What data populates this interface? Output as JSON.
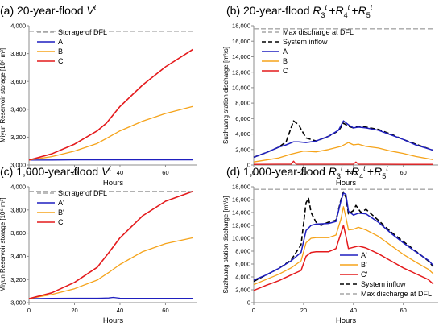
{
  "chart_data": [
    {
      "id": "a",
      "type": "line",
      "title": "(a) 20-year-flood V3t",
      "title_main": "(a) 20-year-flood ",
      "title_sym": "V",
      "title_sub": "3",
      "title_sup": "t",
      "xlabel": "Hours",
      "ylabel": "Miyun Reservoir storage [10⁶ m³]",
      "xlim": [
        0,
        74
      ],
      "ylim": [
        3000,
        4000
      ],
      "xticks": [
        0,
        20,
        40,
        60
      ],
      "yticks": [
        3000,
        3200,
        3400,
        3600,
        3800,
        4000
      ],
      "ytick_labels": [
        "3,000",
        "3,200",
        "3,400",
        "3,600",
        "3,800",
        "4,000"
      ],
      "legend_position": "top-left",
      "legend": [
        {
          "label": "Storage of DFL",
          "color": "#a6a6a6",
          "dash": "dashed"
        },
        {
          "label": "A",
          "color": "#1f1fbf",
          "dash": "solid"
        },
        {
          "label": "B",
          "color": "#f5a31a",
          "dash": "solid"
        },
        {
          "label": "C",
          "color": "#e41a1c",
          "dash": "solid"
        }
      ],
      "series": [
        {
          "name": "Storage of DFL",
          "color": "#a6a6a6",
          "dash": "dashed",
          "width": 1.4,
          "x": [
            0,
            72
          ],
          "y": [
            3960,
            3960
          ]
        },
        {
          "name": "A",
          "color": "#1f1fbf",
          "dash": "solid",
          "width": 1.3,
          "x": [
            0,
            10,
            20,
            30,
            40,
            50,
            60,
            72
          ],
          "y": [
            3035,
            3036,
            3037,
            3037,
            3037,
            3037,
            3037,
            3037
          ]
        },
        {
          "name": "B",
          "color": "#f5a31a",
          "dash": "solid",
          "width": 1.3,
          "x": [
            0,
            10,
            20,
            30,
            34,
            40,
            50,
            60,
            72
          ],
          "y": [
            3035,
            3060,
            3100,
            3155,
            3190,
            3245,
            3315,
            3370,
            3420
          ]
        },
        {
          "name": "C",
          "color": "#e41a1c",
          "dash": "solid",
          "width": 1.6,
          "x": [
            0,
            10,
            20,
            30,
            34,
            40,
            50,
            60,
            72
          ],
          "y": [
            3035,
            3080,
            3150,
            3245,
            3300,
            3420,
            3575,
            3705,
            3830
          ]
        }
      ]
    },
    {
      "id": "b",
      "type": "line",
      "title": "(b) 20-year-flood R3t +R4t +R5t",
      "title_main": "(b) 20-year-flood ",
      "title_terms": [
        {
          "sym": "R",
          "sub": "3",
          "sup": "t"
        },
        {
          "sym": "R",
          "sub": "4",
          "sup": "t"
        },
        {
          "sym": "R",
          "sub": "5",
          "sup": "t"
        }
      ],
      "xlabel": "Hours",
      "ylabel": "Suzhuang station discharge [m³/s]",
      "xlim": [
        0,
        74
      ],
      "ylim": [
        0,
        18000
      ],
      "xticks": [
        0,
        20,
        40,
        60
      ],
      "yticks": [
        0,
        2000,
        4000,
        6000,
        8000,
        10000,
        12000,
        14000,
        16000,
        18000
      ],
      "ytick_labels": [
        "0",
        "2,000",
        "4,000",
        "6,000",
        "8,000",
        "10,000",
        "12,000",
        "14,000",
        "16,000",
        "18,000"
      ],
      "legend_position": "top-left",
      "legend": [
        {
          "label": "Max discharge at DFL",
          "color": "#a6a6a6",
          "dash": "dashed"
        },
        {
          "label": "System inflow",
          "color": "#000000",
          "dash": "dashed"
        },
        {
          "label": "A",
          "color": "#1f1fbf",
          "dash": "solid"
        },
        {
          "label": "B",
          "color": "#f5a31a",
          "dash": "solid"
        },
        {
          "label": "C",
          "color": "#e41a1c",
          "dash": "solid"
        }
      ],
      "series": [
        {
          "name": "Max discharge at DFL",
          "color": "#a6a6a6",
          "dash": "dashed",
          "width": 1.4,
          "x": [
            0,
            72
          ],
          "y": [
            17600,
            17600
          ]
        },
        {
          "name": "System inflow",
          "color": "#000000",
          "dash": "dashed",
          "width": 1.6,
          "x": [
            0,
            5,
            10,
            13,
            16,
            18,
            21,
            25,
            30,
            34,
            36,
            38,
            40,
            42,
            45,
            50,
            55,
            60,
            65,
            72
          ],
          "y": [
            1000,
            1600,
            2300,
            3000,
            5700,
            5200,
            3500,
            3100,
            3700,
            4400,
            5400,
            5000,
            4800,
            5000,
            4900,
            4600,
            4000,
            3300,
            2700,
            1900
          ]
        },
        {
          "name": "A",
          "color": "#1f1fbf",
          "dash": "solid",
          "width": 1.5,
          "x": [
            0,
            5,
            10,
            13,
            16,
            18,
            21,
            25,
            30,
            34,
            36,
            38,
            40,
            42,
            45,
            50,
            55,
            60,
            65,
            72
          ],
          "y": [
            1000,
            1600,
            2300,
            2600,
            3000,
            3000,
            2900,
            3100,
            3700,
            4500,
            5700,
            5200,
            4800,
            4900,
            4800,
            4500,
            3900,
            3300,
            2600,
            1900
          ]
        },
        {
          "name": "B",
          "color": "#f5a31a",
          "dash": "solid",
          "width": 1.3,
          "x": [
            0,
            10,
            15,
            20,
            25,
            30,
            35,
            38,
            40,
            42,
            45,
            50,
            55,
            60,
            65,
            72
          ],
          "y": [
            400,
            900,
            1400,
            1800,
            1700,
            2000,
            2400,
            2900,
            2600,
            2700,
            2400,
            2200,
            1800,
            1500,
            1100,
            700
          ]
        },
        {
          "name": "C",
          "color": "#e41a1c",
          "dash": "solid",
          "width": 1.3,
          "x": [
            0,
            10,
            15,
            16,
            17,
            20,
            25,
            30,
            35,
            40,
            41,
            42,
            45,
            50,
            60,
            72
          ],
          "y": [
            80,
            100,
            100,
            500,
            100,
            100,
            100,
            100,
            100,
            100,
            400,
            100,
            100,
            100,
            80,
            80
          ]
        }
      ]
    },
    {
      "id": "c",
      "type": "line",
      "title": "(c) 1,000-year-flood V3t",
      "title_main": "(c) 1,000-year-flood ",
      "title_sym": "V",
      "title_sub": "3",
      "title_sup": "t",
      "xlabel": "Hours",
      "ylabel": "Miyun Reservoir storage [10⁶ m³]",
      "xlim": [
        0,
        74
      ],
      "ylim": [
        3000,
        4000
      ],
      "xticks": [
        0,
        20,
        40,
        60
      ],
      "yticks": [
        3000,
        3200,
        3400,
        3600,
        3800,
        4000
      ],
      "ytick_labels": [
        "3,000",
        "3,200",
        "3,400",
        "3,600",
        "3,800",
        "4,000"
      ],
      "legend_position": "top-left",
      "legend": [
        {
          "label": "Storage of DFL",
          "color": "#a6a6a6",
          "dash": "dashed"
        },
        {
          "label": "A'",
          "color": "#1f1fbf",
          "dash": "solid"
        },
        {
          "label": "B'",
          "color": "#f5a31a",
          "dash": "solid"
        },
        {
          "label": "C'",
          "color": "#e41a1c",
          "dash": "solid"
        }
      ],
      "series": [
        {
          "name": "Storage of DFL",
          "color": "#a6a6a6",
          "dash": "dashed",
          "width": 1.4,
          "x": [
            0,
            72
          ],
          "y": [
            3960,
            3960
          ]
        },
        {
          "name": "A'",
          "color": "#1f1fbf",
          "dash": "solid",
          "width": 1.3,
          "x": [
            0,
            10,
            20,
            30,
            35,
            37,
            40,
            50,
            60,
            72
          ],
          "y": [
            3035,
            3037,
            3038,
            3038,
            3040,
            3045,
            3038,
            3037,
            3037,
            3037
          ]
        },
        {
          "name": "B'",
          "color": "#f5a31a",
          "dash": "solid",
          "width": 1.3,
          "x": [
            0,
            10,
            20,
            30,
            35,
            40,
            50,
            60,
            72
          ],
          "y": [
            3035,
            3070,
            3120,
            3195,
            3260,
            3330,
            3440,
            3510,
            3560
          ]
        },
        {
          "name": "C'",
          "color": "#e41a1c",
          "dash": "solid",
          "width": 1.6,
          "x": [
            0,
            10,
            20,
            30,
            35,
            40,
            50,
            60,
            72
          ],
          "y": [
            3035,
            3085,
            3175,
            3305,
            3430,
            3560,
            3750,
            3875,
            3960
          ]
        }
      ]
    },
    {
      "id": "d",
      "type": "line",
      "title": "(d) 1,000-year-flood R3t +R4t +R5t",
      "title_main": "(d) 1,000-year-flood ",
      "title_terms": [
        {
          "sym": "R",
          "sub": "3",
          "sup": "t"
        },
        {
          "sym": "R",
          "sub": "4",
          "sup": "t"
        },
        {
          "sym": "R",
          "sub": "5",
          "sup": "t"
        }
      ],
      "xlabel": "Hours",
      "ylabel": "Suzhuang station discharge [m³/s]",
      "xlim": [
        0,
        74
      ],
      "ylim": [
        0,
        18000
      ],
      "xticks": [
        0,
        20,
        40,
        60
      ],
      "yticks": [
        0,
        2000,
        4000,
        6000,
        8000,
        10000,
        12000,
        14000,
        16000,
        18000
      ],
      "ytick_labels": [
        "0",
        "2,000",
        "4,000",
        "6,000",
        "8,000",
        "10,000",
        "12,000",
        "14,000",
        "16,000",
        "18,000"
      ],
      "legend_position": "bottom-right",
      "legend": [
        {
          "label": "A'",
          "color": "#1f1fbf",
          "dash": "solid"
        },
        {
          "label": "B'",
          "color": "#f5a31a",
          "dash": "solid"
        },
        {
          "label": "C'",
          "color": "#e41a1c",
          "dash": "solid"
        },
        {
          "label": "System inflow",
          "color": "#000000",
          "dash": "dashed"
        },
        {
          "label": "Max discharge at DFL",
          "color": "#a6a6a6",
          "dash": "dashed"
        }
      ],
      "series": [
        {
          "name": "Max discharge at DFL",
          "color": "#a6a6a6",
          "dash": "dashed",
          "width": 1.4,
          "x": [
            0,
            72
          ],
          "y": [
            17600,
            17600
          ]
        },
        {
          "name": "System inflow",
          "color": "#000000",
          "dash": "dashed",
          "width": 1.6,
          "x": [
            0,
            5,
            10,
            15,
            19,
            21,
            22,
            23,
            25,
            27,
            30,
            33,
            35,
            36,
            37,
            38,
            40,
            41,
            43,
            45,
            50,
            55,
            60,
            65,
            70,
            72
          ],
          "y": [
            3300,
            4300,
            5300,
            6600,
            9000,
            15500,
            16200,
            14000,
            12500,
            12000,
            12500,
            12800,
            16000,
            17200,
            16300,
            13800,
            14300,
            15100,
            14000,
            14500,
            12800,
            11000,
            9500,
            8000,
            6500,
            5600
          ]
        },
        {
          "name": "A'",
          "color": "#1f1fbf",
          "dash": "solid",
          "width": 1.5,
          "x": [
            0,
            5,
            10,
            15,
            19,
            21,
            23,
            25,
            30,
            33,
            35,
            36,
            37,
            38,
            40,
            42,
            45,
            50,
            55,
            60,
            65,
            70,
            72
          ],
          "y": [
            3500,
            4300,
            5300,
            6500,
            7800,
            11200,
            12000,
            12200,
            12300,
            12600,
            15800,
            17000,
            16800,
            14200,
            13600,
            13900,
            13800,
            12500,
            10800,
            9300,
            7900,
            6600,
            5800
          ]
        },
        {
          "name": "B'",
          "color": "#f5a31a",
          "dash": "solid",
          "width": 1.3,
          "x": [
            0,
            5,
            10,
            15,
            19,
            21,
            23,
            25,
            30,
            33,
            35,
            36,
            37,
            38,
            40,
            42,
            45,
            50,
            55,
            60,
            65,
            70,
            72
          ],
          "y": [
            2800,
            3600,
            4400,
            5400,
            6500,
            9300,
            10000,
            10100,
            10100,
            10500,
            13000,
            14900,
            13200,
            11300,
            11400,
            11700,
            11300,
            10300,
            8900,
            7500,
            6300,
            5200,
            4500
          ]
        },
        {
          "name": "C'",
          "color": "#e41a1c",
          "dash": "solid",
          "width": 1.5,
          "x": [
            0,
            5,
            10,
            15,
            19,
            21,
            23,
            25,
            30,
            33,
            35,
            36,
            37,
            38,
            40,
            42,
            45,
            50,
            55,
            60,
            65,
            70,
            72
          ],
          "y": [
            1900,
            2700,
            3400,
            4300,
            5000,
            7200,
            7800,
            7900,
            7900,
            8400,
            10800,
            12000,
            10300,
            8400,
            8600,
            8800,
            8500,
            7600,
            6500,
            5400,
            4500,
            3600,
            2900
          ]
        }
      ]
    }
  ]
}
